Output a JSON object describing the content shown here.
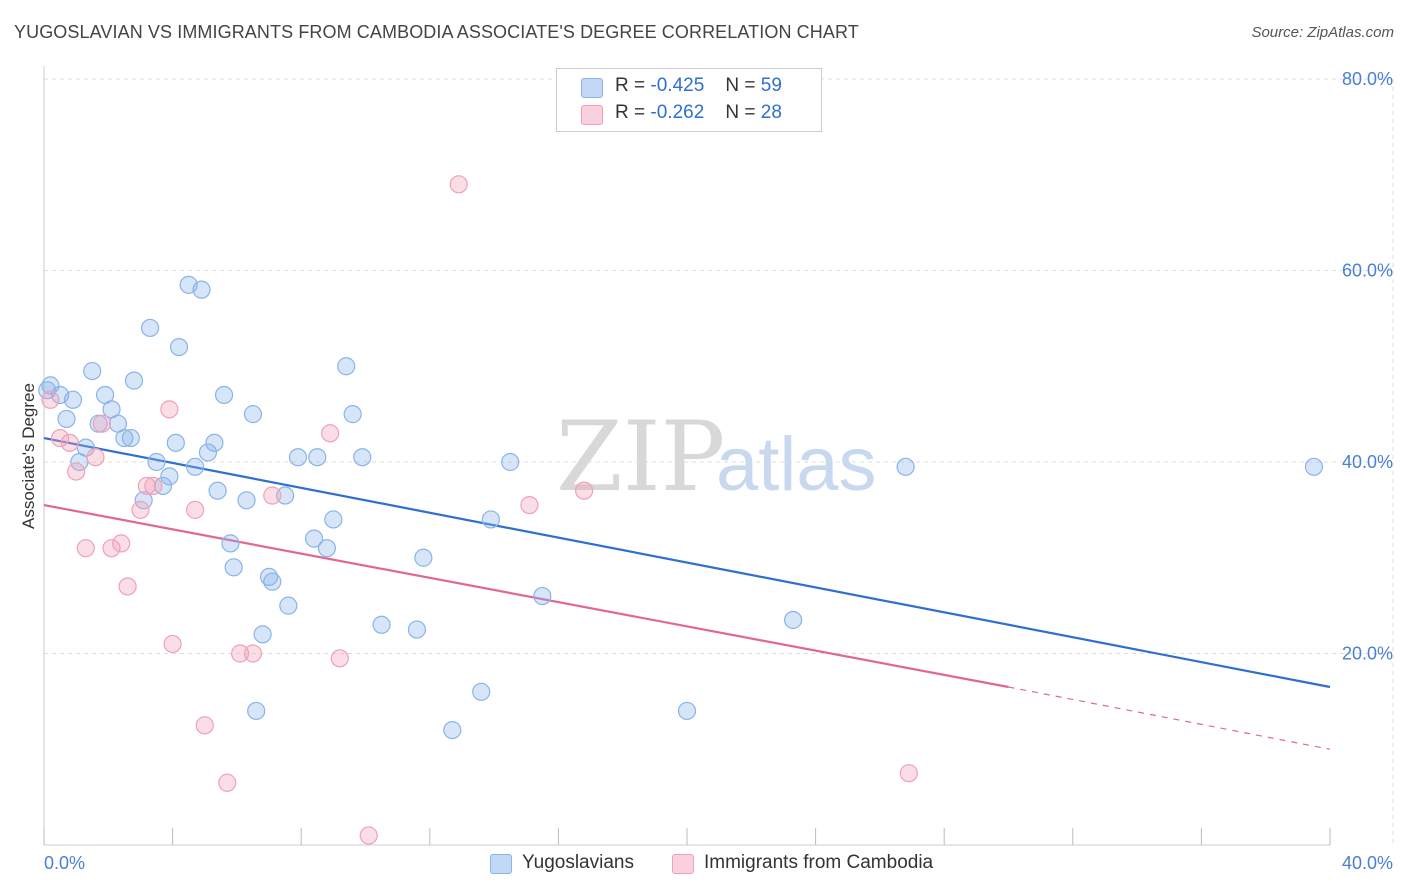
{
  "header": {
    "title": "YUGOSLAVIAN VS IMMIGRANTS FROM CAMBODIA ASSOCIATE'S DEGREE CORRELATION CHART",
    "source": "Source: ZipAtlas.com"
  },
  "watermark": {
    "zip": "ZIP",
    "atlas": "atlas"
  },
  "legend": {
    "rows": [
      {
        "r_label": "R =",
        "r_value": "-0.425",
        "n_label": "N =",
        "n_value": "59",
        "color": "#8ab4e8"
      },
      {
        "r_label": "R =",
        "r_value": "-0.262",
        "n_label": "N =",
        "n_value": "28",
        "color": "#f0a0b8"
      }
    ]
  },
  "bottom_legend": {
    "items": [
      {
        "label": "Yugoslavians",
        "color": "#8ab4e8"
      },
      {
        "label": "Immigrants from Cambodia",
        "color": "#f0a0b8"
      }
    ]
  },
  "chart_data": {
    "type": "scatter",
    "title": "YUGOSLAVIAN VS IMMIGRANTS FROM CAMBODIA ASSOCIATE'S DEGREE CORRELATION CHART",
    "xlabel": "",
    "ylabel": "Associate's Degree",
    "xlim": [
      0,
      40
    ],
    "ylim": [
      0,
      80
    ],
    "x_tick_labels": [
      "0.0%",
      "40.0%"
    ],
    "y_tick_labels": [
      "20.0%",
      "40.0%",
      "60.0%",
      "80.0%"
    ],
    "y_tick_values": [
      20,
      40,
      60,
      80
    ],
    "grid": true,
    "series": [
      {
        "name": "Yugoslavians",
        "color": "#8ab4e8",
        "line_color": "#2f6fd0",
        "trend": {
          "x": [
            0,
            40
          ],
          "y": [
            42.5,
            16.5
          ]
        },
        "points": [
          [
            0.1,
            47.5
          ],
          [
            0.2,
            48.0
          ],
          [
            0.5,
            47.0
          ],
          [
            0.7,
            44.5
          ],
          [
            0.9,
            46.5
          ],
          [
            1.1,
            40.0
          ],
          [
            1.3,
            41.5
          ],
          [
            1.5,
            49.5
          ],
          [
            1.7,
            44.0
          ],
          [
            1.9,
            47.0
          ],
          [
            2.1,
            45.5
          ],
          [
            2.3,
            44.0
          ],
          [
            2.5,
            42.5
          ],
          [
            2.7,
            42.5
          ],
          [
            2.8,
            48.5
          ],
          [
            3.1,
            36.0
          ],
          [
            3.3,
            54.0
          ],
          [
            3.5,
            40.0
          ],
          [
            3.7,
            37.5
          ],
          [
            3.9,
            38.5
          ],
          [
            4.1,
            42.0
          ],
          [
            4.2,
            52.0
          ],
          [
            4.5,
            58.5
          ],
          [
            4.7,
            39.5
          ],
          [
            4.9,
            58.0
          ],
          [
            5.1,
            41.0
          ],
          [
            5.3,
            42.0
          ],
          [
            5.4,
            37.0
          ],
          [
            5.6,
            47.0
          ],
          [
            5.8,
            31.5
          ],
          [
            5.9,
            29.0
          ],
          [
            6.3,
            36.0
          ],
          [
            6.5,
            45.0
          ],
          [
            6.6,
            14.0
          ],
          [
            6.8,
            22.0
          ],
          [
            7.0,
            28.0
          ],
          [
            7.1,
            27.5
          ],
          [
            7.5,
            36.5
          ],
          [
            7.6,
            25.0
          ],
          [
            7.9,
            40.5
          ],
          [
            8.4,
            32.0
          ],
          [
            8.5,
            40.5
          ],
          [
            8.8,
            31.0
          ],
          [
            9.0,
            34.0
          ],
          [
            9.4,
            50.0
          ],
          [
            9.6,
            45.0
          ],
          [
            9.9,
            40.5
          ],
          [
            10.5,
            23.0
          ],
          [
            11.6,
            22.5
          ],
          [
            11.8,
            30.0
          ],
          [
            12.7,
            12.0
          ],
          [
            13.6,
            16.0
          ],
          [
            13.9,
            34.0
          ],
          [
            14.5,
            40.0
          ],
          [
            15.5,
            26.0
          ],
          [
            20.0,
            14.0
          ],
          [
            23.3,
            23.5
          ],
          [
            26.8,
            39.5
          ],
          [
            39.5,
            39.5
          ]
        ]
      },
      {
        "name": "Immigrants from Cambodia",
        "color": "#f0a0b8",
        "line_color": "#e06890",
        "trend": {
          "x": [
            0,
            30
          ],
          "y": [
            35.5,
            16.5
          ]
        },
        "trend_dashed": {
          "x": [
            30,
            40
          ],
          "y": [
            16.5,
            10.0
          ]
        },
        "points": [
          [
            0.2,
            46.5
          ],
          [
            0.5,
            42.5
          ],
          [
            0.8,
            42.0
          ],
          [
            1.0,
            39.0
          ],
          [
            1.3,
            31.0
          ],
          [
            1.6,
            40.5
          ],
          [
            1.8,
            44.0
          ],
          [
            2.1,
            31.0
          ],
          [
            2.4,
            31.5
          ],
          [
            2.6,
            27.0
          ],
          [
            3.0,
            35.0
          ],
          [
            3.2,
            37.5
          ],
          [
            3.4,
            37.5
          ],
          [
            3.9,
            45.5
          ],
          [
            4.0,
            21.0
          ],
          [
            4.7,
            35.0
          ],
          [
            5.0,
            12.5
          ],
          [
            5.7,
            6.5
          ],
          [
            6.1,
            20.0
          ],
          [
            6.5,
            20.0
          ],
          [
            7.1,
            36.5
          ],
          [
            8.9,
            43.0
          ],
          [
            9.2,
            19.5
          ],
          [
            10.1,
            1.0
          ],
          [
            12.9,
            69.0
          ],
          [
            15.1,
            35.5
          ],
          [
            16.8,
            37.0
          ],
          [
            26.9,
            7.5
          ]
        ]
      }
    ]
  }
}
